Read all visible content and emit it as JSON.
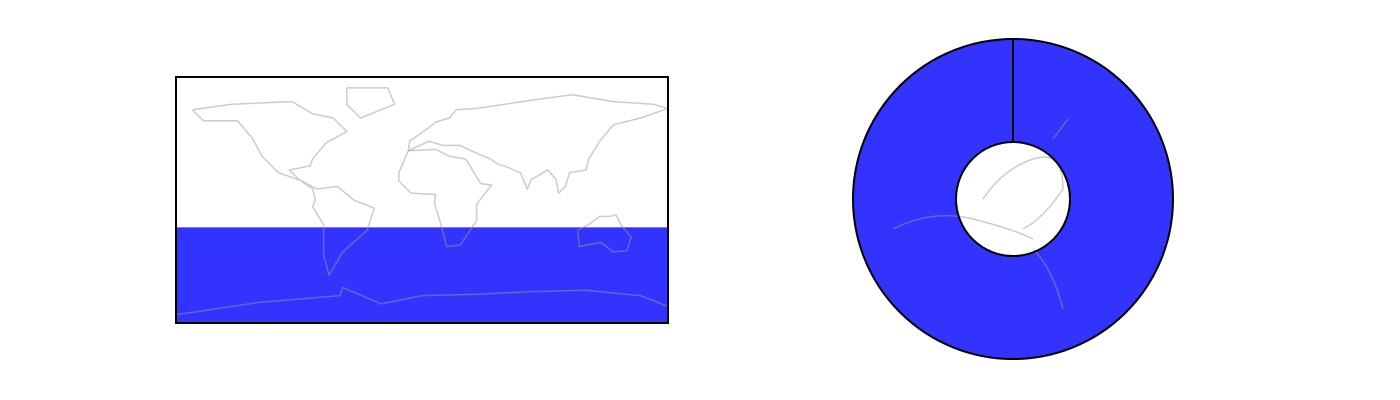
{
  "maps": [
    {
      "shaded_lat": [
        -90,
        -20
      ],
      "lat_range": [
        -90,
        90
      ],
      "color": "#3333ff"
    },
    {
      "color": "#3333ff"
    }
  ]
}
